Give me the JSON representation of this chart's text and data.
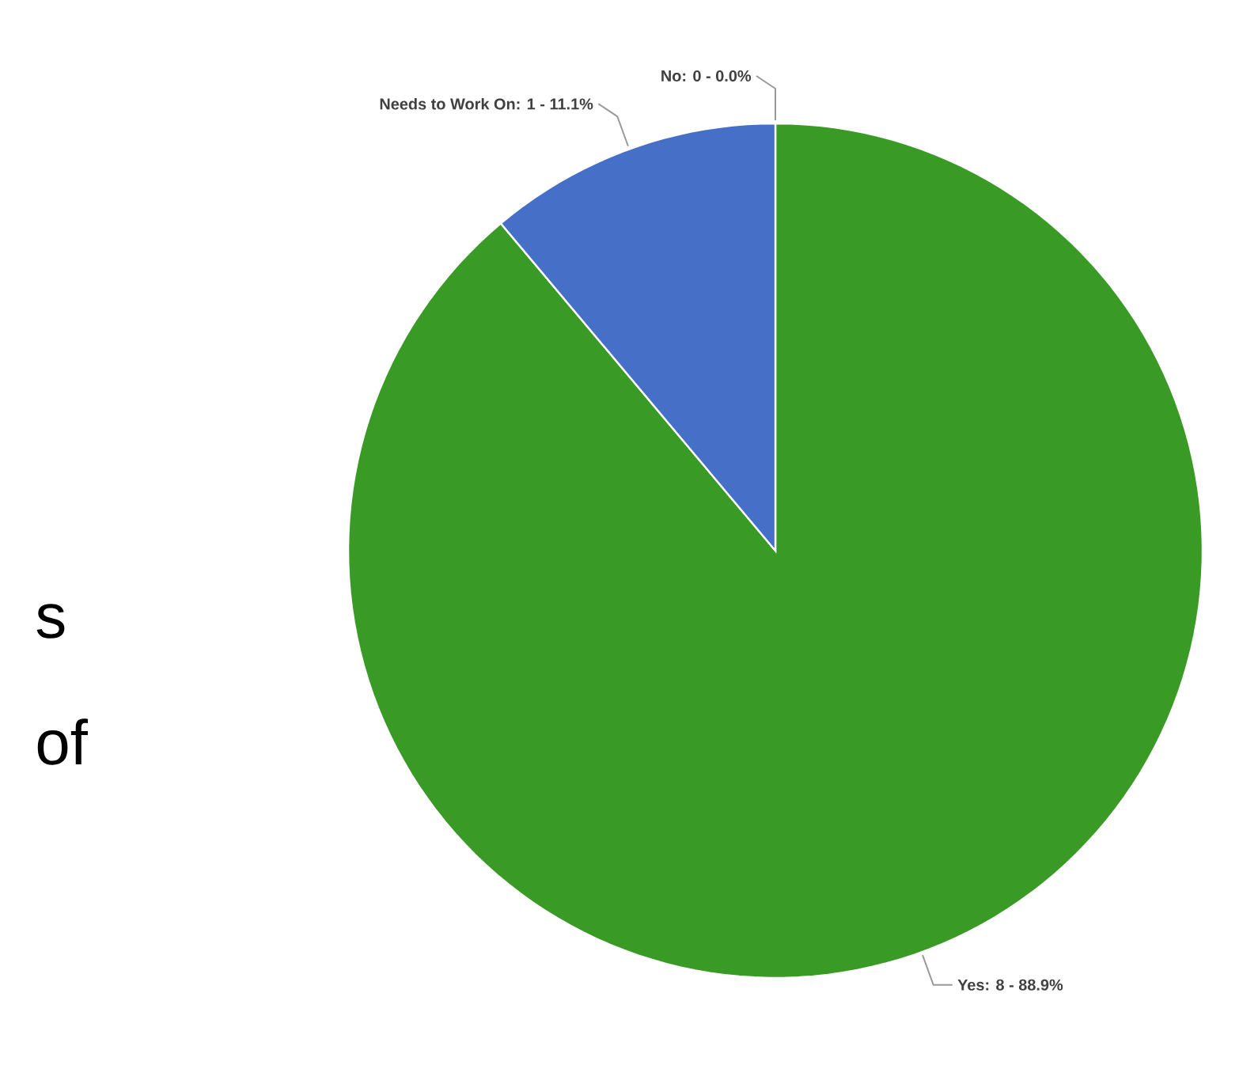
{
  "chart_data": {
    "type": "pie",
    "categories": [
      "Yes: 8 - 88.9%",
      "Needs to Work On: 1 - 11.1%",
      "No: 0 - 0.0%"
    ],
    "values": [
      8,
      1,
      0
    ],
    "colors": [
      "#3a9a26",
      "#4670c8",
      "#8fb0e8"
    ],
    "annotations": [
      "s",
      "of"
    ]
  }
}
